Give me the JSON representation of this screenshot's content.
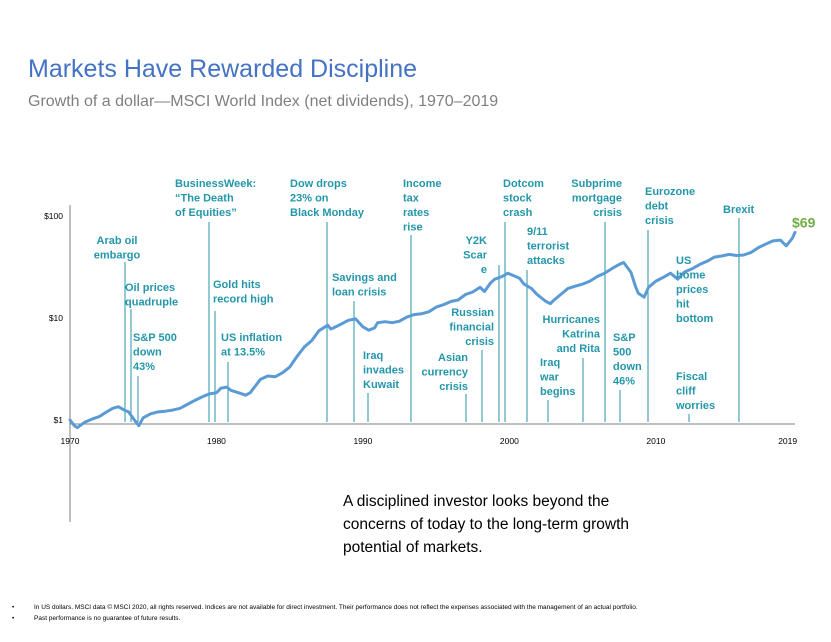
{
  "title": "Markets Have Rewarded Discipline",
  "subtitle": "Growth of a dollar—MSCI World Index (net dividends), 1970–2019",
  "message": "A disciplined investor looks beyond the concerns of today to the long-term growth potential of markets.",
  "footnotes": [
    "In US dollars. MSCI data © MSCI 2020, all rights reserved. Indices are not available for direct investment. Their performance does not reflect the expenses associated with the management of an actual portfolio.",
    "Past performance is no guarantee of future results."
  ],
  "bullet": "•",
  "colors": {
    "title": "#4472c4",
    "line": "#5b9bd5",
    "annotation": "#2496aa",
    "end_label": "#70ad47",
    "axis": "#7f7f7f"
  },
  "chart_data": {
    "type": "line",
    "title": "Growth of a dollar—MSCI World Index (net dividends), 1970–2019",
    "y_scale": "log",
    "ylim": [
      1,
      100
    ],
    "xlim": [
      1970,
      2019.5
    ],
    "x_ticks": [
      "1970",
      "1980",
      "1990",
      "2000",
      "2010",
      "2019"
    ],
    "y_ticks": [
      "$1",
      "$10",
      "$100"
    ],
    "grid": false,
    "end_label": "$69",
    "series": [
      {
        "x": [
          1970.0,
          1970.3,
          1970.5,
          1971.0,
          1971.5,
          1972.0,
          1972.5,
          1972.9,
          1973.3,
          1973.7,
          1974.0,
          1974.4,
          1974.7,
          1975.0,
          1975.5,
          1976.0,
          1976.5,
          1977.0,
          1977.5,
          1978.0,
          1978.5,
          1979.0,
          1979.5,
          1980.0,
          1980.3,
          1980.7,
          1981.0,
          1981.5,
          1982.0,
          1982.3,
          1982.7,
          1983.0,
          1983.5,
          1984.0,
          1984.5,
          1985.0,
          1985.5,
          1986.0,
          1986.5,
          1987.0,
          1987.6,
          1987.8,
          1988.0,
          1988.5,
          1989.0,
          1989.5,
          1990.0,
          1990.4,
          1990.8,
          1991.0,
          1991.5,
          1992.0,
          1992.5,
          1993.0,
          1993.5,
          1994.0,
          1994.5,
          1995.0,
          1995.5,
          1996.0,
          1996.5,
          1997.0,
          1997.5,
          1998.0,
          1998.3,
          1998.7,
          1999.0,
          1999.5,
          1999.9,
          2000.3,
          2000.7,
          2001.0,
          2001.5,
          2001.8,
          2002.0,
          2002.5,
          2002.8,
          2003.0,
          2003.5,
          2004.0,
          2004.5,
          2005.0,
          2005.5,
          2006.0,
          2006.5,
          2007.0,
          2007.5,
          2007.8,
          2008.3,
          2008.6,
          2008.8,
          2009.2,
          2009.5,
          2010.0,
          2010.5,
          2011.0,
          2011.5,
          2011.8,
          2012.0,
          2012.5,
          2013.0,
          2013.5,
          2014.0,
          2014.5,
          2015.0,
          2015.5,
          2016.0,
          2016.5,
          2017.0,
          2017.5,
          2018.0,
          2018.5,
          2018.9,
          2019.3,
          2019.5
        ],
        "values": [
          1.0,
          0.88,
          0.84,
          0.95,
          1.02,
          1.08,
          1.2,
          1.3,
          1.35,
          1.25,
          1.2,
          1.0,
          0.88,
          1.05,
          1.15,
          1.2,
          1.22,
          1.25,
          1.3,
          1.42,
          1.55,
          1.68,
          1.8,
          1.85,
          2.05,
          2.1,
          1.95,
          1.85,
          1.75,
          1.85,
          2.2,
          2.5,
          2.7,
          2.65,
          2.9,
          3.3,
          4.2,
          5.2,
          6.0,
          7.5,
          8.5,
          7.8,
          8.0,
          8.7,
          9.5,
          9.8,
          8.2,
          7.6,
          8.0,
          9.0,
          9.2,
          9.0,
          9.3,
          10.2,
          10.8,
          11.0,
          11.5,
          12.8,
          13.5,
          14.5,
          15.0,
          17.0,
          18.0,
          20.0,
          18.2,
          22.0,
          24.0,
          25.5,
          27.5,
          26.0,
          24.5,
          21.5,
          19.5,
          17.5,
          16.5,
          14.5,
          13.8,
          14.8,
          17.0,
          19.5,
          20.5,
          21.5,
          23.0,
          25.5,
          27.5,
          30.5,
          33.5,
          35.0,
          28.0,
          20.5,
          17.5,
          16.0,
          20.0,
          23.0,
          25.0,
          27.5,
          24.0,
          27.0,
          28.5,
          30.5,
          33.5,
          36.0,
          39.5,
          40.5,
          42.0,
          41.0,
          41.5,
          44.0,
          49.0,
          53.0,
          57.0,
          58.0,
          51.0,
          60.0,
          69.0
        ]
      }
    ],
    "annotations": [
      {
        "year": 1973.9,
        "text": [
          "Arab oil",
          "embargo"
        ]
      },
      {
        "year": 1974.1,
        "text": [
          "Oil prices",
          "quadruple"
        ]
      },
      {
        "year": 1974.6,
        "text": [
          "S&P 500",
          "down",
          "43%"
        ]
      },
      {
        "year": 1979.6,
        "text": [
          "BusinessWeek:",
          "“The Death",
          "of Equities”"
        ]
      },
      {
        "year": 1979.9,
        "text": [
          "Gold hits",
          "record high"
        ]
      },
      {
        "year": 1980.8,
        "text": [
          "US inflation",
          "at 13.5%"
        ]
      },
      {
        "year": 1987.8,
        "text": [
          "Dow drops",
          "23% on",
          "Black Monday"
        ]
      },
      {
        "year": 1989.1,
        "text": [
          "Savings and",
          "loan crisis"
        ]
      },
      {
        "year": 1990.0,
        "text": [
          "Iraq",
          "invades",
          "Kuwait"
        ]
      },
      {
        "year": 1993.0,
        "text": [
          "Income",
          "tax",
          "rates",
          "rise"
        ]
      },
      {
        "year": 1996.7,
        "text": [
          "Asian",
          "currency",
          "crisis"
        ]
      },
      {
        "year": 1997.7,
        "text": [
          "Russian",
          "financial",
          "crisis"
        ]
      },
      {
        "year": 1999.2,
        "text": [
          "Y2K",
          "Scar",
          "e"
        ]
      },
      {
        "year": 1999.1,
        "text": [
          "Dotcom",
          "stock",
          "crash"
        ]
      },
      {
        "year": 2000.6,
        "text": [
          "9/11",
          "terrorist",
          "attacks"
        ]
      },
      {
        "year": 2002.0,
        "text": [
          "Iraq",
          "war",
          "begins"
        ]
      },
      {
        "year": 2004.4,
        "text": [
          "Hurricanes",
          "Katrina",
          "and Rita"
        ]
      },
      {
        "year": 2005.8,
        "text": [
          "Subprime",
          "mortgage",
          "crisis"
        ]
      },
      {
        "year": 2006.6,
        "text": [
          "S&P",
          "500",
          "down",
          "46%"
        ]
      },
      {
        "year": 2008.6,
        "text": [
          "Eurozone",
          "debt",
          "crisis"
        ]
      },
      {
        "year": 2010.4,
        "text": [
          "US",
          "home",
          "prices",
          "hit",
          "bottom"
        ]
      },
      {
        "year": 2011.6,
        "text": [
          "Fiscal",
          "cliff",
          "worries"
        ]
      },
      {
        "year": 2014.7,
        "text": [
          "Brexit"
        ]
      }
    ]
  }
}
